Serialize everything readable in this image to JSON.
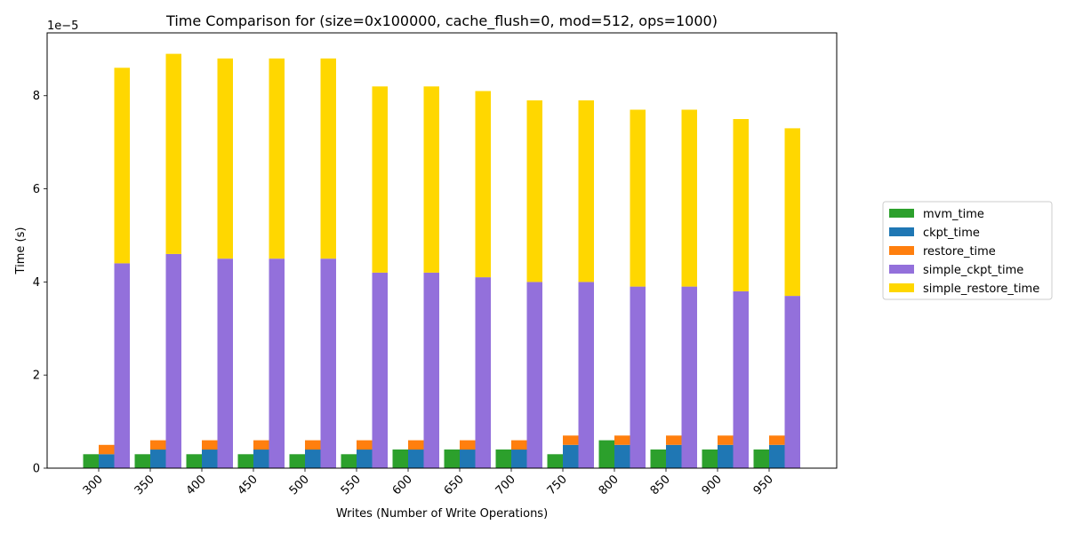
{
  "chart_data": {
    "type": "bar",
    "title": "Time Comparison for (size=0x100000, cache_flush=0, mod=512, ops=1000)",
    "xlabel": "Writes (Number of Write Operations)",
    "ylabel": "Time (s)",
    "y_offset_text": "1e−5",
    "y_scale": 1e-05,
    "ylim": [
      0,
      9.35
    ],
    "yticks": [
      0,
      2,
      4,
      6,
      8
    ],
    "ytick_labels": [
      "0",
      "2",
      "4",
      "6",
      "8"
    ],
    "categories": [
      "300",
      "350",
      "400",
      "450",
      "500",
      "550",
      "600",
      "650",
      "700",
      "750",
      "800",
      "850",
      "900",
      "950"
    ],
    "legend_position": "right",
    "series": [
      {
        "name": "mvm_time",
        "color": "#2ca02c",
        "group": "mvm",
        "values": [
          0.3,
          0.3,
          0.3,
          0.3,
          0.3,
          0.3,
          0.4,
          0.4,
          0.4,
          0.3,
          0.6,
          0.4,
          0.4,
          0.4
        ]
      },
      {
        "name": "ckpt_time",
        "color": "#1f77b4",
        "group": "ours",
        "values": [
          0.3,
          0.4,
          0.4,
          0.4,
          0.4,
          0.4,
          0.4,
          0.4,
          0.4,
          0.5,
          0.5,
          0.5,
          0.5,
          0.5
        ]
      },
      {
        "name": "restore_time",
        "color": "#ff7f0e",
        "group": "ours",
        "values": [
          0.2,
          0.2,
          0.2,
          0.2,
          0.2,
          0.2,
          0.2,
          0.2,
          0.2,
          0.2,
          0.2,
          0.2,
          0.2,
          0.2
        ]
      },
      {
        "name": "simple_ckpt_time",
        "color": "#9370db",
        "group": "simple",
        "values": [
          4.4,
          4.6,
          4.5,
          4.5,
          4.5,
          4.2,
          4.2,
          4.1,
          4.0,
          4.0,
          3.9,
          3.9,
          3.8,
          3.7
        ]
      },
      {
        "name": "simple_restore_time",
        "color": "#ffd700",
        "group": "simple",
        "values": [
          4.2,
          4.3,
          4.3,
          4.3,
          4.3,
          4.0,
          4.0,
          4.0,
          3.9,
          3.9,
          3.8,
          3.8,
          3.7,
          3.6
        ]
      }
    ]
  }
}
